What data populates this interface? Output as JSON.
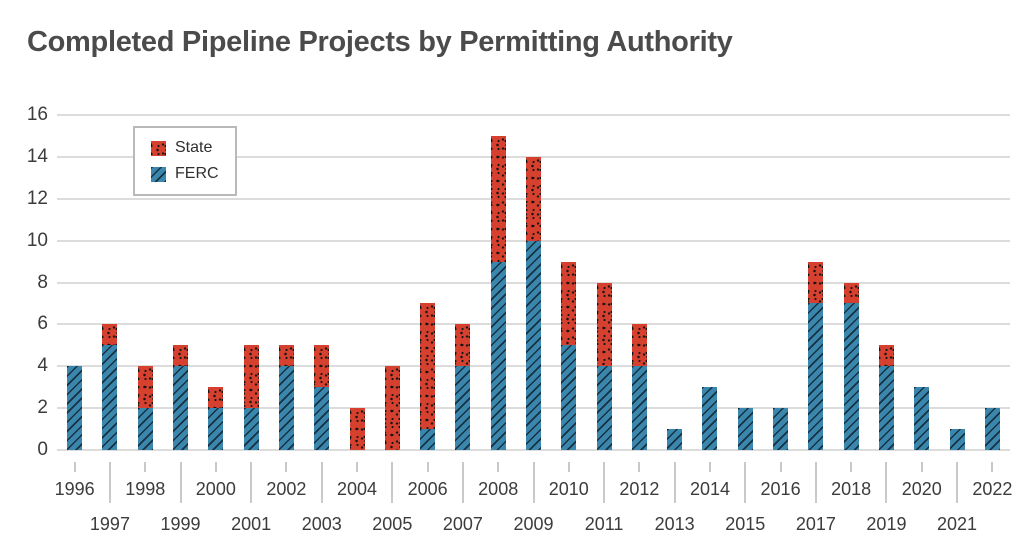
{
  "chart_data": {
    "type": "bar",
    "stacked": true,
    "title": "Completed Pipeline Projects by Permitting Authority",
    "categories": [
      1996,
      1997,
      1998,
      1999,
      2000,
      2001,
      2002,
      2003,
      2004,
      2005,
      2006,
      2007,
      2008,
      2009,
      2010,
      2011,
      2012,
      2013,
      2014,
      2015,
      2016,
      2017,
      2018,
      2019,
      2020,
      2021,
      2022
    ],
    "series": [
      {
        "name": "State",
        "color": "#d6402e",
        "pattern": "black-dots",
        "values": [
          0,
          1,
          2,
          1,
          1,
          3,
          1,
          2,
          2,
          4,
          6,
          2,
          6,
          4,
          4,
          4,
          2,
          0,
          0,
          0,
          0,
          2,
          1,
          1,
          0,
          0,
          0
        ]
      },
      {
        "name": "FERC",
        "color": "#3a86ad",
        "pattern": "diagonal-hatch",
        "values": [
          4,
          5,
          2,
          4,
          2,
          2,
          4,
          3,
          0,
          0,
          1,
          4,
          9,
          10,
          5,
          4,
          4,
          1,
          3,
          2,
          2,
          7,
          7,
          4,
          3,
          1,
          2
        ]
      }
    ],
    "totals": [
      4,
      6,
      4,
      5,
      3,
      5,
      5,
      5,
      2,
      4,
      7,
      6,
      15,
      14,
      9,
      8,
      6,
      1,
      3,
      2,
      2,
      9,
      8,
      5,
      3,
      1,
      2
    ],
    "ylim": [
      0,
      16
    ],
    "yticks": [
      0,
      2,
      4,
      6,
      8,
      10,
      12,
      14,
      16
    ],
    "grid": true,
    "legend_position": "upper-left-inside",
    "colors": {
      "grid": "#dcdcdc",
      "axis_tick": "#c9c9c9",
      "tick_label": "#3c3c3c",
      "title": "#4b4b4b",
      "background": "#ffffff"
    }
  }
}
